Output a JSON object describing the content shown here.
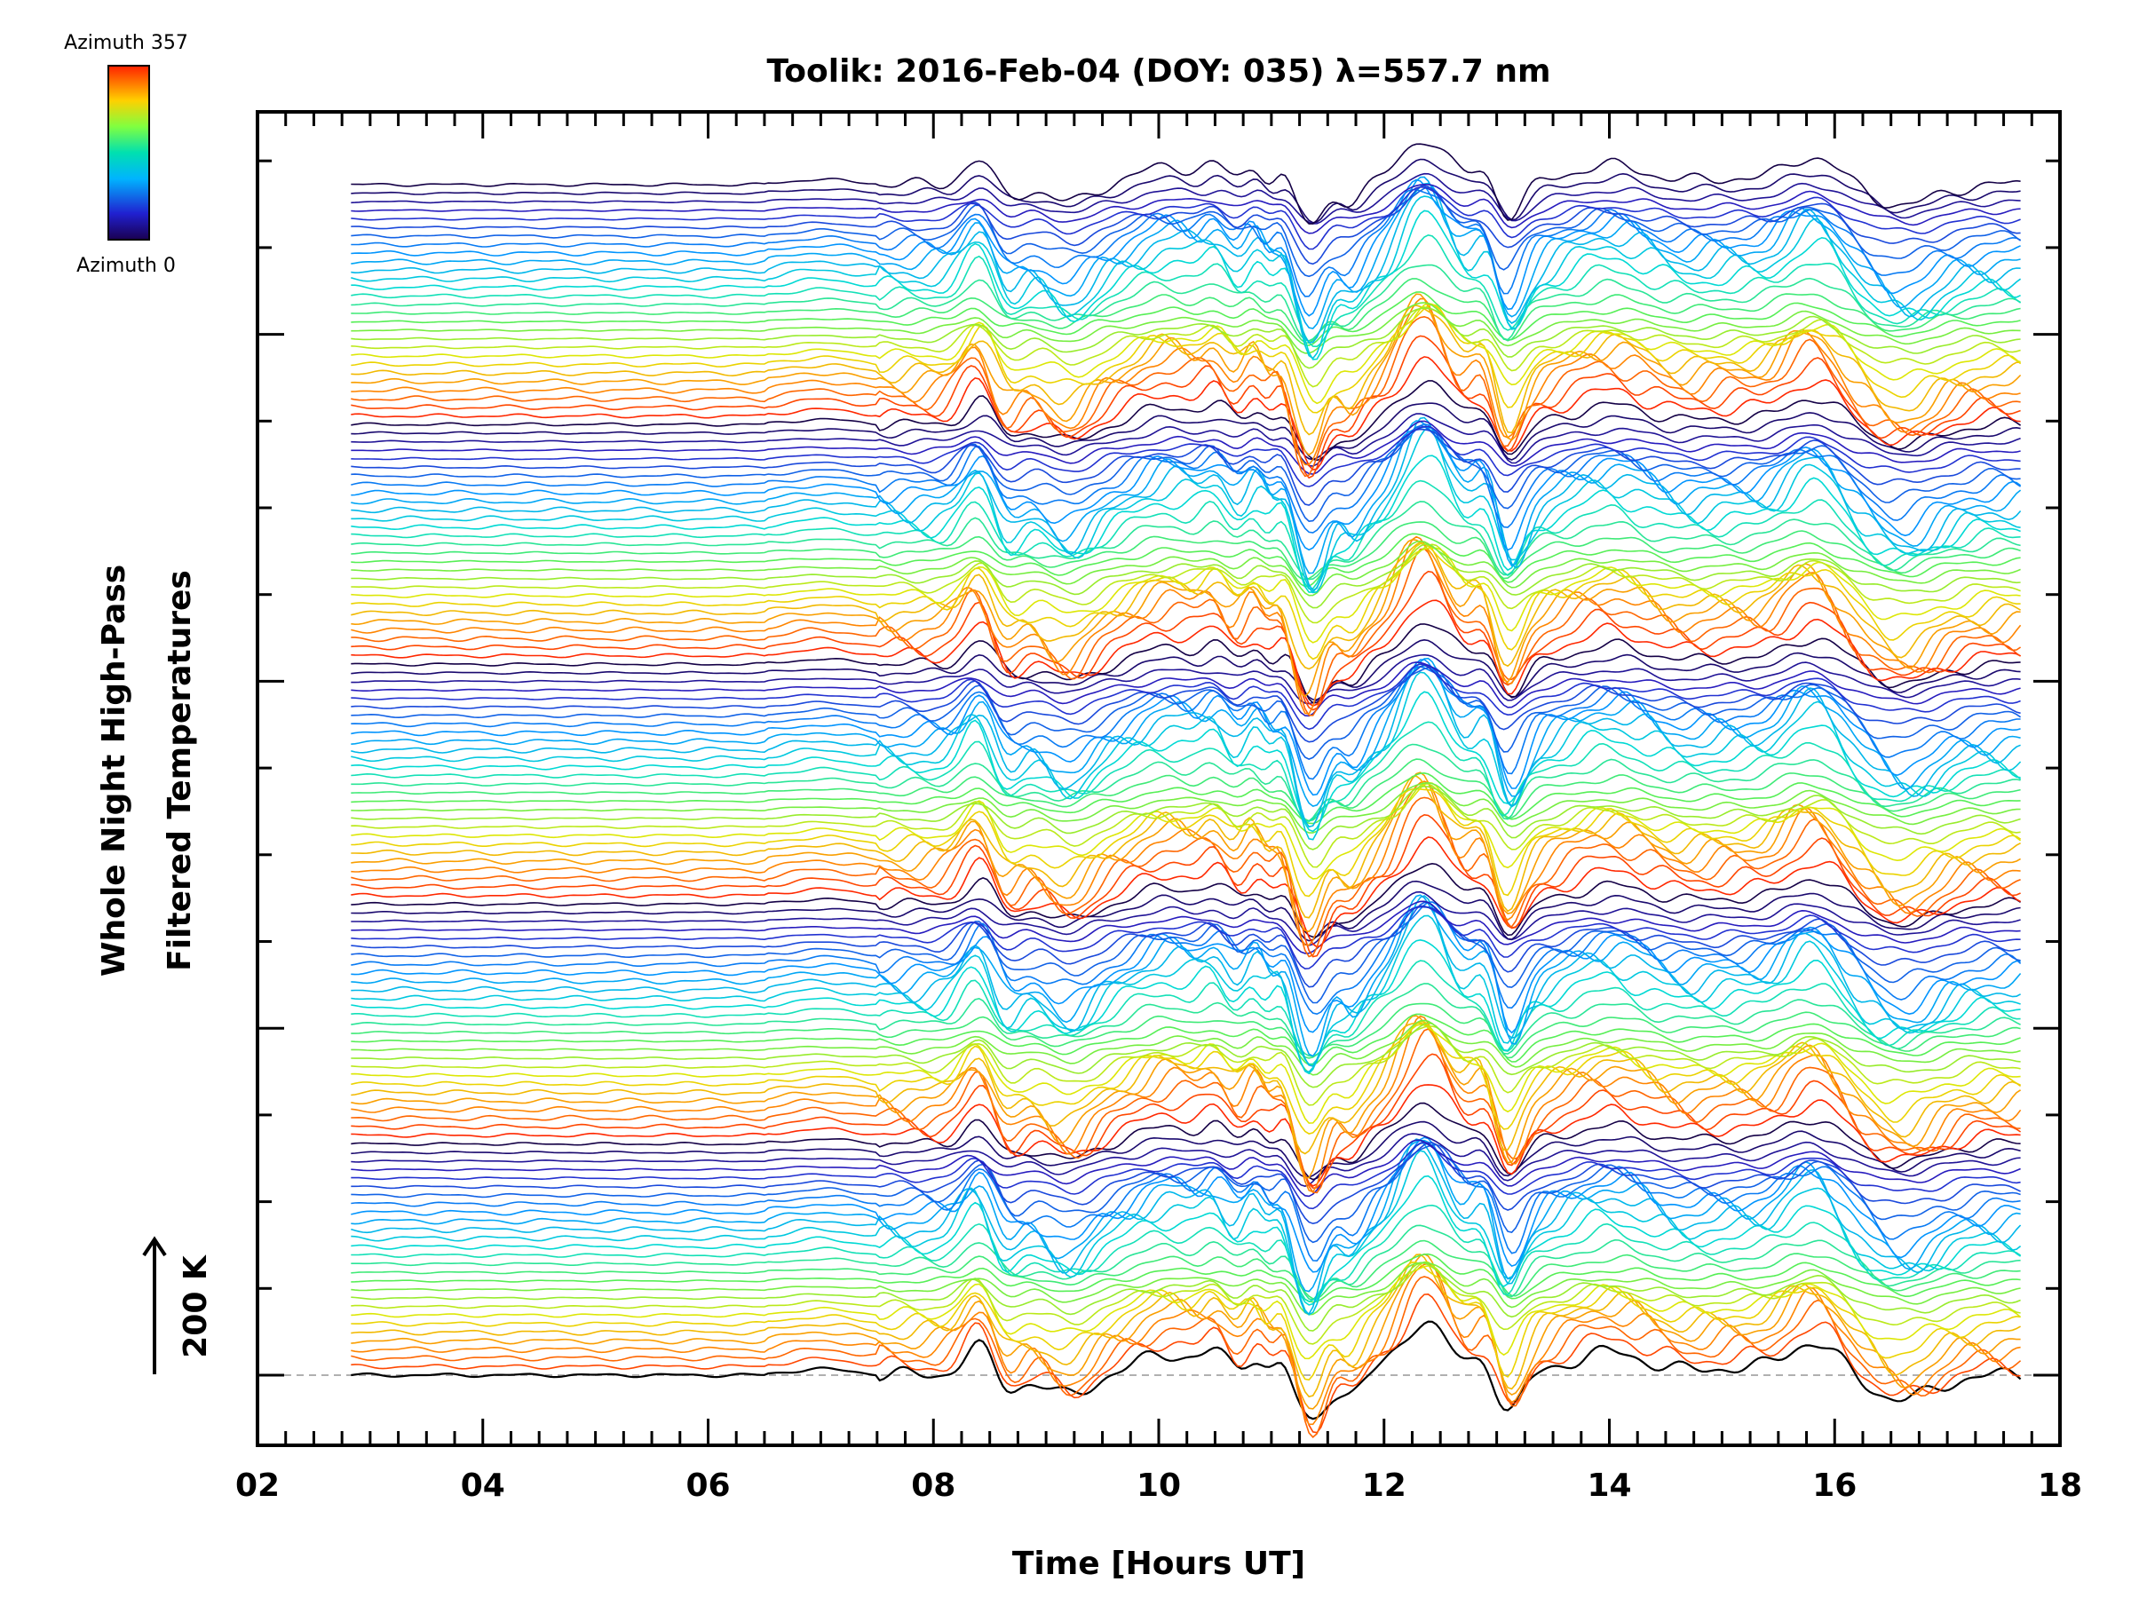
{
  "chart_data": {
    "type": "line",
    "title": "Toolik: 2016-Feb-04 (DOY: 035) λ=557.7 nm",
    "xlabel": "Time [Hours UT]",
    "ylabel": "Whole Night High-Pass",
    "ylabel2": "Filtered Temperatures",
    "xlim": [
      2,
      18
    ],
    "x_ticks": [
      "02",
      "04",
      "06",
      "08",
      "10",
      "12",
      "14",
      "16",
      "18"
    ],
    "scale_bar_label": "200 K",
    "scale_bar_value": 200,
    "colorbar": {
      "top_label": "Azimuth 357",
      "bottom_label": "Azimuth 0",
      "min": 0,
      "max": 357
    },
    "trace_count": 140,
    "trace_time_range": [
      2.83,
      17.65
    ],
    "events": [
      {
        "t": 8.4,
        "amp": 1.0,
        "w": 0.13
      },
      {
        "t": 8.65,
        "amp": -0.55,
        "w": 0.12
      },
      {
        "t": 9.2,
        "amp": -0.7,
        "w": 0.18
      },
      {
        "t": 10.1,
        "amp": 0.7,
        "w": 0.28
      },
      {
        "t": 10.5,
        "amp": 0.55,
        "w": 0.1
      },
      {
        "t": 10.85,
        "amp": 0.6,
        "w": 0.08
      },
      {
        "t": 11.1,
        "amp": 0.5,
        "w": 0.07
      },
      {
        "t": 11.35,
        "amp": -1.6,
        "w": 0.12
      },
      {
        "t": 11.7,
        "amp": -0.6,
        "w": 0.1
      },
      {
        "t": 12.35,
        "amp": 1.8,
        "w": 0.2
      },
      {
        "t": 12.9,
        "amp": 0.7,
        "w": 0.1
      },
      {
        "t": 13.1,
        "amp": -1.3,
        "w": 0.12
      },
      {
        "t": 14.0,
        "amp": 0.75,
        "w": 0.35
      },
      {
        "t": 15.1,
        "amp": 0.25,
        "w": 0.25
      },
      {
        "t": 15.8,
        "amp": 1.1,
        "w": 0.23
      },
      {
        "t": 16.6,
        "amp": -0.8,
        "w": 0.28
      }
    ]
  }
}
